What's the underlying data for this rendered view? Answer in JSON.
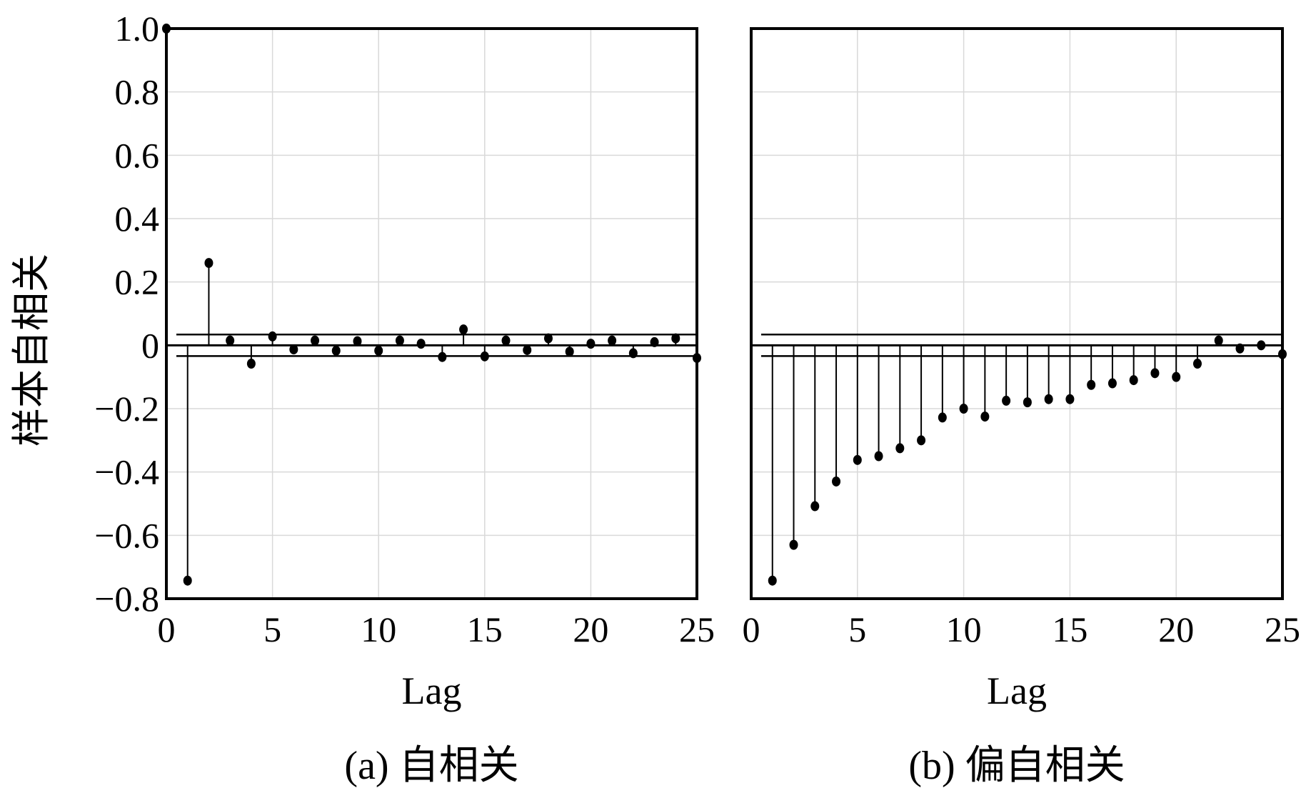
{
  "y_axis_label": "样本自相关",
  "chart_data": [
    {
      "type": "stem",
      "caption": "(a) 自相关",
      "xlabel": "Lag",
      "ylabel": "样本自相关",
      "xlim": [
        0,
        25
      ],
      "ylim": [
        -0.8,
        1.0
      ],
      "x_ticks": [
        "0",
        "5",
        "10",
        "15",
        "20",
        "25"
      ],
      "y_ticks": [
        "1.0",
        "0.8",
        "0.6",
        "0.4",
        "0.2",
        "0",
        "−0.2",
        "−0.4",
        "−0.6",
        "−0.8"
      ],
      "confidence_bounds": [
        0.034,
        -0.034
      ],
      "grid": true,
      "x": [
        0,
        1,
        2,
        3,
        4,
        5,
        6,
        7,
        8,
        9,
        10,
        11,
        12,
        13,
        14,
        15,
        16,
        17,
        18,
        19,
        20,
        21,
        22,
        23,
        24,
        25
      ],
      "values": [
        1.0,
        -0.743,
        0.26,
        0.015,
        -0.058,
        0.028,
        -0.013,
        0.015,
        -0.017,
        0.013,
        -0.017,
        0.015,
        0.005,
        -0.037,
        0.05,
        -0.035,
        0.015,
        -0.015,
        0.022,
        -0.02,
        0.005,
        0.015,
        -0.025,
        0.01,
        0.022,
        -0.04
      ]
    },
    {
      "type": "stem",
      "caption": "(b) 偏自相关",
      "xlabel": "Lag",
      "xlim": [
        0,
        25
      ],
      "ylim": [
        -0.8,
        1.0
      ],
      "x_ticks": [
        "0",
        "5",
        "10",
        "15",
        "20",
        "25"
      ],
      "confidence_bounds": [
        0.034,
        -0.034
      ],
      "grid": true,
      "x": [
        1,
        2,
        3,
        4,
        5,
        6,
        7,
        8,
        9,
        10,
        11,
        12,
        13,
        14,
        15,
        16,
        17,
        18,
        19,
        20,
        21,
        22,
        23,
        24,
        25
      ],
      "values": [
        -0.743,
        -0.63,
        -0.508,
        -0.43,
        -0.362,
        -0.35,
        -0.325,
        -0.3,
        -0.228,
        -0.2,
        -0.225,
        -0.175,
        -0.18,
        -0.17,
        -0.17,
        -0.125,
        -0.12,
        -0.11,
        -0.088,
        -0.1,
        -0.058,
        0.015,
        -0.01,
        0.0,
        -0.028
      ]
    }
  ]
}
